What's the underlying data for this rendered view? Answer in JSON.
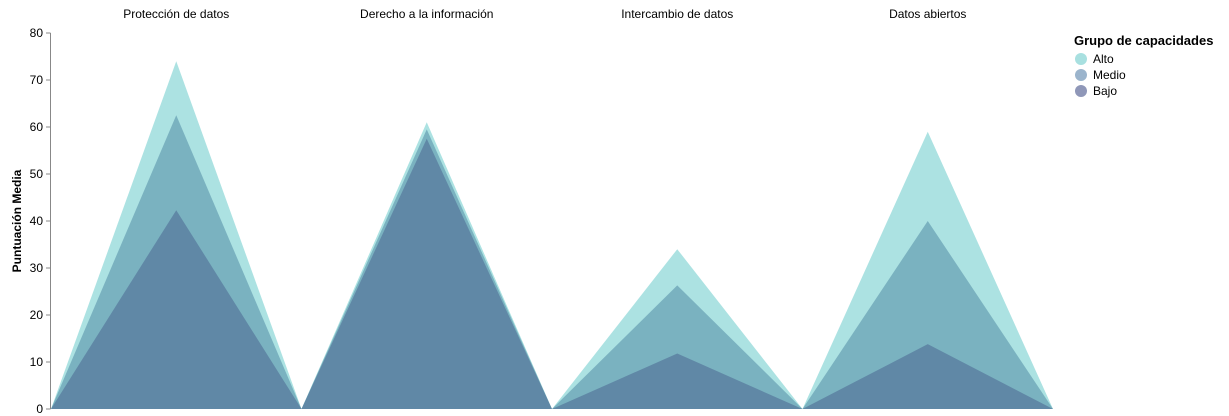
{
  "chart_data": {
    "type": "area",
    "categories": [
      "Protección de datos",
      "Derecho a la información",
      "Intercambio de datos",
      "Datos abiertos"
    ],
    "ylabel": "Puntuación Media",
    "ylim": [
      0,
      80
    ],
    "yticks": [
      0,
      10,
      20,
      30,
      40,
      50,
      60,
      70,
      80
    ],
    "grid": false,
    "legend_title": "Grupo de capacidades",
    "legend_position": "top-right",
    "series": [
      {
        "name": "Alto",
        "color": "#a8e0e0",
        "values": [
          74,
          61,
          34,
          59
        ]
      },
      {
        "name": "Medio",
        "color": "#6fa7b8",
        "values": [
          62.5,
          59.5,
          26.3,
          40
        ]
      },
      {
        "name": "Bajo",
        "color": "#5a7fa0",
        "values": [
          42.3,
          57.5,
          11.8,
          13.8
        ]
      }
    ],
    "legend_colors": [
      "#a8e0e0",
      "#9bb4cc",
      "#8f97b8"
    ]
  }
}
